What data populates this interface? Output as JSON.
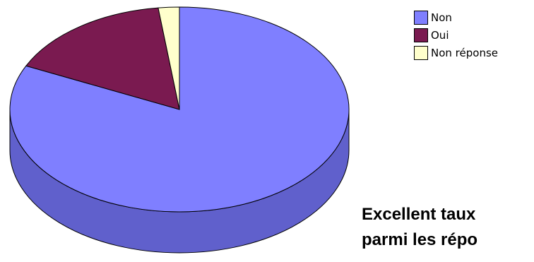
{
  "chart_data": {
    "type": "pie",
    "style": "3d",
    "categories": [
      "Non",
      "Oui",
      "Non réponse"
    ],
    "values": [
      82,
      16,
      2
    ],
    "unit": "%",
    "colors": [
      "#7f7fff",
      "#7a1a50",
      "#ffffcc"
    ],
    "side_colors": [
      "#6060cc",
      "#5a1038",
      "#cccc99"
    ],
    "legend_position": "top-right",
    "title": ""
  },
  "caption": {
    "line1": "Excellent taux",
    "line2": "parmi les répo"
  }
}
